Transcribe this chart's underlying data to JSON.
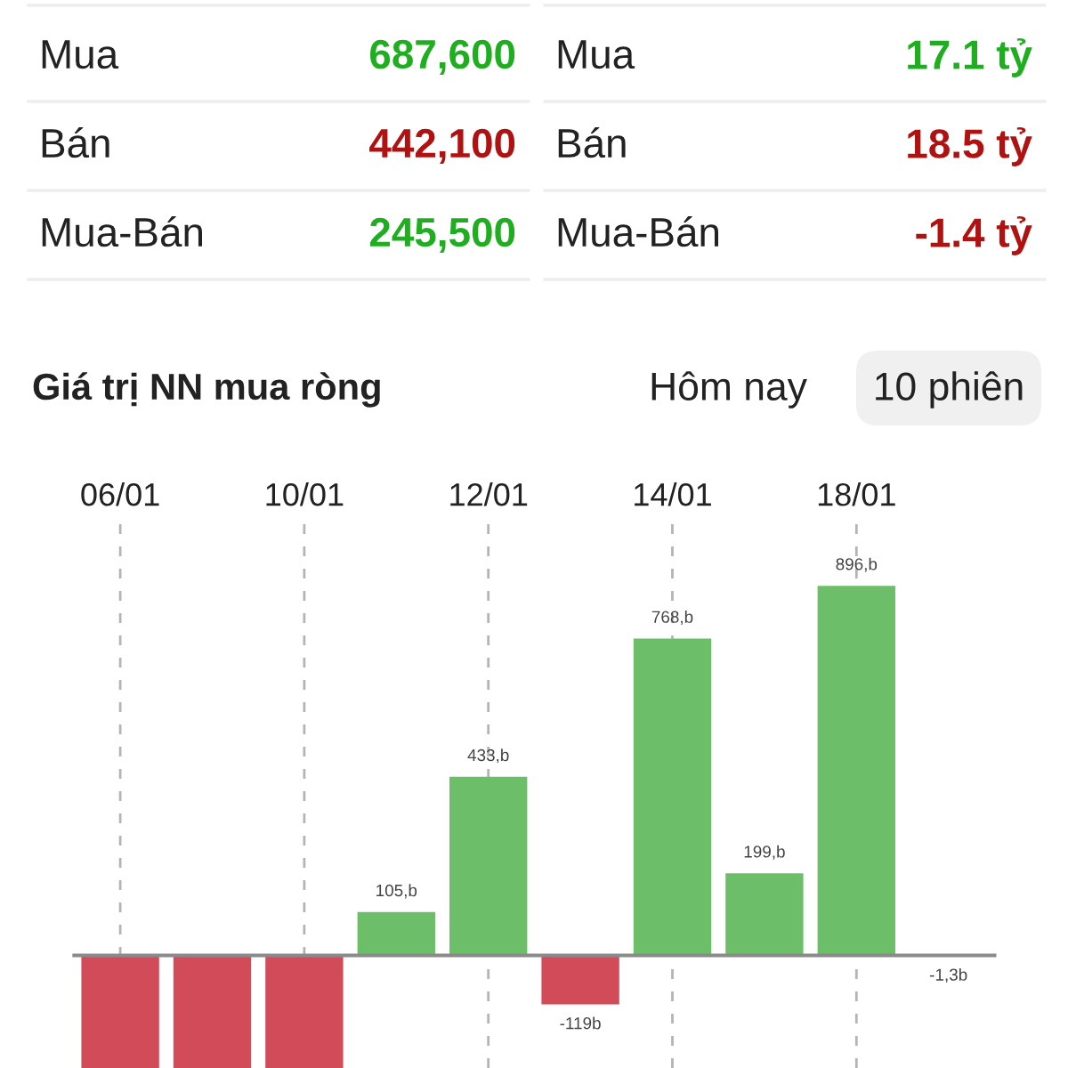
{
  "chart_data": [
    {
      "type": "other",
      "categories": [
        "Mua",
        "Bán",
        "Mua-Bán"
      ],
      "series": [
        {
          "values": [
            687600,
            442100,
            245500
          ],
          "value_labels": [
            "687,600",
            "442,100",
            "245,500"
          ],
          "colors": [
            "#1fae1f",
            "#b01212",
            "#1fae1f"
          ]
        },
        {
          "values": [
            17.1,
            18.5,
            -1.4
          ],
          "value_labels": [
            "17.1 tỷ",
            "18.5 tỷ",
            "-1.4 tỷ"
          ],
          "colors": [
            "#1fae1f",
            "#b01212",
            "#b01212"
          ]
        }
      ]
    },
    {
      "type": "bar",
      "title": "Giá trị NN mua ròng",
      "annotations": [
        "Hôm nay",
        "10 phiên"
      ],
      "categories": [
        "06/01",
        null,
        "10/01",
        null,
        "12/01",
        null,
        "14/01",
        null,
        "18/01",
        null
      ],
      "values": [
        -273,
        -273,
        -273,
        105,
        433,
        -119,
        768,
        199,
        896,
        -1.3
      ],
      "value_labels": [
        null,
        null,
        null,
        "105,b",
        "433,b",
        "-119b",
        "768,b",
        "199,b",
        "896,b",
        "-1,3b"
      ],
      "colors": [
        "#d24b59",
        "#d24b59",
        "#d24b59",
        "#6dbe69",
        "#6dbe69",
        "#d24b59",
        "#6dbe69",
        "#6dbe69",
        "#6dbe69",
        "#d24b59"
      ],
      "ylim": [
        -273,
        1056
      ],
      "grid": "x",
      "tick_labels": "x"
    }
  ]
}
